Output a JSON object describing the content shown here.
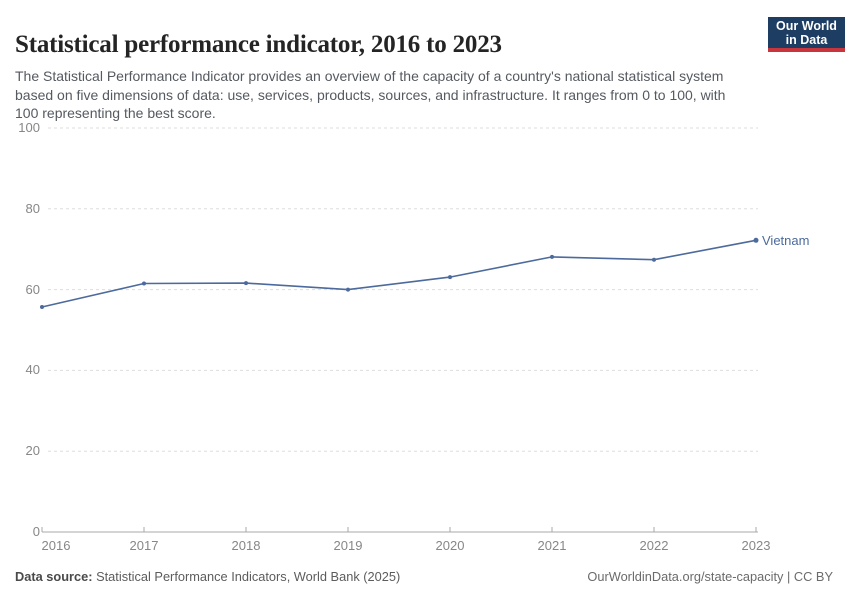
{
  "header": {
    "title": "Statistical performance indicator, 2016 to 2023",
    "subtitle": "The Statistical Performance Indicator provides an overview of the capacity of a country's national statistical system based on five dimensions of data: use, services, products, sources, and infrastructure. It ranges from 0 to 100, with 100 representing the best score.",
    "logo": {
      "line1": "Our World",
      "line2": "in Data"
    }
  },
  "chart_data": {
    "type": "line",
    "title": "Statistical performance indicator, 2016 to 2023",
    "x": [
      2016,
      2017,
      2018,
      2019,
      2020,
      2021,
      2022,
      2023
    ],
    "series": [
      {
        "name": "Vietnam",
        "color": "#4c6a9c",
        "values": [
          55.7,
          61.5,
          61.6,
          60.0,
          63.1,
          68.1,
          67.4,
          72.2
        ]
      }
    ],
    "xlabel": "",
    "ylabel": "",
    "x_ticks": [
      2016,
      2017,
      2018,
      2019,
      2020,
      2021,
      2022,
      2023
    ],
    "y_ticks": [
      0,
      20,
      40,
      60,
      80,
      100
    ],
    "ylim": [
      0,
      100
    ],
    "grid": "horizontal-dashed",
    "legend_position": "end-of-line-label"
  },
  "colors": {
    "line": "#4c6a9c",
    "grid": "#dddddd",
    "axis": "#a8a8a8",
    "tick_text": "#878787",
    "logo_bg": "#1d3d63",
    "logo_stripe": "#c9353d"
  },
  "footer": {
    "datasource_label": "Data source:",
    "datasource_text": " Statistical Performance Indicators, World Bank (2025)",
    "link_text": "OurWorldinData.org/state-capacity | CC BY"
  }
}
